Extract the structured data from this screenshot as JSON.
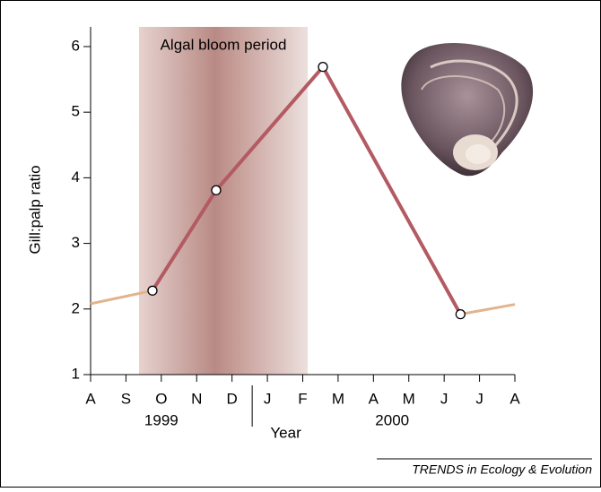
{
  "chart_data": {
    "type": "line",
    "y_label": "Gill:palp ratio",
    "x_label": "Year",
    "xlim": [
      0,
      12
    ],
    "xticks": [
      {
        "value": 0,
        "label": "A"
      },
      {
        "value": 1,
        "label": "S"
      },
      {
        "value": 2,
        "label": "O"
      },
      {
        "value": 3,
        "label": "N"
      },
      {
        "value": 4,
        "label": "D"
      },
      {
        "value": 5,
        "label": "J"
      },
      {
        "value": 6,
        "label": "F"
      },
      {
        "value": 7,
        "label": "M"
      },
      {
        "value": 8,
        "label": "A"
      },
      {
        "value": 9,
        "label": "M"
      },
      {
        "value": 10,
        "label": "J"
      },
      {
        "value": 11,
        "label": "J"
      },
      {
        "value": 12,
        "label": "A"
      }
    ],
    "x_groups": [
      {
        "label": "1999",
        "x": 2
      },
      {
        "label": "2000",
        "x": 8.53
      }
    ],
    "x_divider": 4.57,
    "ylim": [
      1,
      6.3
    ],
    "yticks": [
      1,
      2,
      3,
      4,
      5,
      6
    ],
    "shaded_span": {
      "label": "Algal bloom period",
      "x": [
        1.37,
        6.14
      ]
    },
    "series": [
      {
        "color": "#e2b48c",
        "markers": false,
        "x": [
          0,
          1.75
        ],
        "values": [
          2.08,
          2.28
        ]
      },
      {
        "color": "#b35a63",
        "markers": true,
        "x": [
          1.75,
          3.55,
          6.57,
          10.46
        ],
        "values": [
          2.28,
          3.81,
          5.69,
          1.92
        ]
      },
      {
        "color": "#e2b48c",
        "markers": false,
        "x": [
          10.46,
          12
        ],
        "values": [
          1.92,
          2.07
        ]
      }
    ],
    "source": "TRENDS in Ecology & Evolution"
  }
}
